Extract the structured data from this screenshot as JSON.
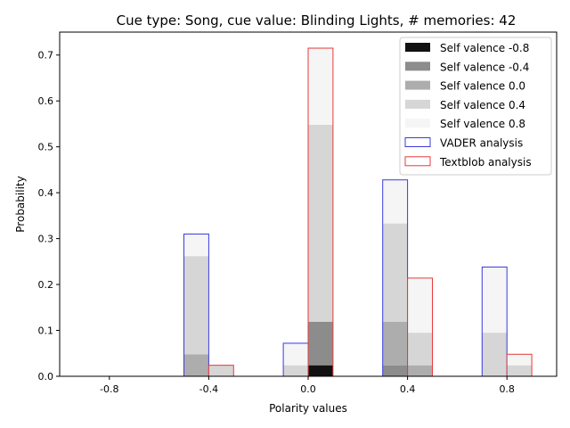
{
  "chart_data": {
    "type": "bar",
    "title": "Cue type: Song, cue value: Blinding Lights, # memories: 42",
    "xlabel": "Polarity values",
    "ylabel": "Probability",
    "xlim": [
      -1.0,
      1.0
    ],
    "ylim": [
      0,
      0.75
    ],
    "xticks": [
      -0.8,
      -0.4,
      0.0,
      0.4,
      0.8
    ],
    "xtick_labels": [
      "-0.8",
      "-0.4",
      "0.0",
      "0.4",
      "0.8"
    ],
    "yticks": [
      0.0,
      0.1,
      0.2,
      0.3,
      0.4,
      0.5,
      0.6,
      0.7
    ],
    "ytick_labels": [
      "0.0",
      "0.1",
      "0.2",
      "0.3",
      "0.4",
      "0.5",
      "0.6",
      "0.7"
    ],
    "grid": false,
    "legend_position": "top-right",
    "categories": [
      -0.8,
      -0.4,
      0.0,
      0.4,
      0.8
    ],
    "bar_width": 0.1,
    "analyses": [
      {
        "name": "VADER analysis",
        "edge_color": "#3a3adf",
        "offset": -0.05,
        "stacks": [
          [
            0,
            0,
            0,
            0,
            0
          ],
          [
            0,
            0,
            0,
            0.024,
            0
          ],
          [
            0,
            0.048,
            0,
            0.095,
            0
          ],
          [
            0,
            0.214,
            0.024,
            0.214,
            0.095
          ],
          [
            0,
            0.048,
            0.048,
            0.095,
            0.143
          ]
        ]
      },
      {
        "name": "Textblob analysis",
        "edge_color": "#e83a3a",
        "offset": 0.05,
        "stacks": [
          [
            0,
            0,
            0.024,
            0,
            0
          ],
          [
            0,
            0,
            0.095,
            0,
            0
          ],
          [
            0,
            0,
            0,
            0.024,
            0
          ],
          [
            0,
            0.024,
            0.429,
            0.071,
            0.024
          ],
          [
            0,
            0,
            0.167,
            0.119,
            0.024
          ]
        ]
      }
    ],
    "self_valence_series": [
      {
        "name": "Self valence -0.8",
        "color": "#111111",
        "alpha": 1.0
      },
      {
        "name": "Self valence -0.4",
        "color": "#8c8c8c",
        "alpha": 1.0
      },
      {
        "name": "Self valence 0.0",
        "color": "#adadad",
        "alpha": 1.0
      },
      {
        "name": "Self valence 0.4",
        "color": "#d6d6d6",
        "alpha": 1.0
      },
      {
        "name": "Self valence 0.8",
        "color": "#f5f5f5",
        "alpha": 1.0
      }
    ],
    "legend": [
      {
        "label": "Self valence -0.8",
        "kind": "fill",
        "color": "#111111"
      },
      {
        "label": "Self valence -0.4",
        "kind": "fill",
        "color": "#8c8c8c"
      },
      {
        "label": "Self valence 0.0",
        "kind": "fill",
        "color": "#adadad"
      },
      {
        "label": "Self valence 0.4",
        "kind": "fill",
        "color": "#d6d6d6"
      },
      {
        "label": "Self valence 0.8",
        "kind": "fill",
        "color": "#f5f5f5"
      },
      {
        "label": "VADER analysis",
        "kind": "outline",
        "color": "#3a3adf"
      },
      {
        "label": "Textblob analysis",
        "kind": "outline",
        "color": "#e83a3a"
      }
    ]
  }
}
